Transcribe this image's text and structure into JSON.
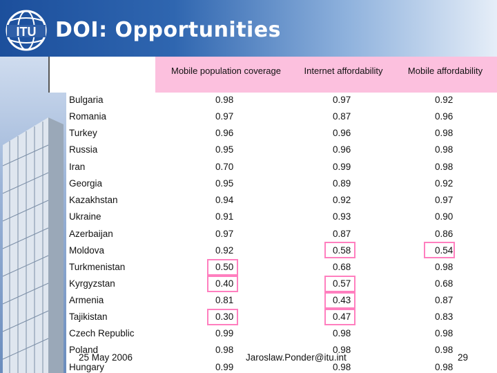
{
  "slide": {
    "logo_text": "ITU",
    "title": "DOI: Opportunities",
    "columns": [
      "Mobile population coverage",
      "Internet affordability",
      "Mobile affordability"
    ],
    "rows": [
      {
        "country": "Bulgaria",
        "mobile_population_coverage": "0.98",
        "internet_affordability": "0.97",
        "mobile_affordability": "0.92"
      },
      {
        "country": "Romania",
        "mobile_population_coverage": "0.97",
        "internet_affordability": "0.87",
        "mobile_affordability": "0.96"
      },
      {
        "country": "Turkey",
        "mobile_population_coverage": "0.96",
        "internet_affordability": "0.96",
        "mobile_affordability": "0.98"
      },
      {
        "country": "Russia",
        "mobile_population_coverage": "0.95",
        "internet_affordability": "0.96",
        "mobile_affordability": "0.98"
      },
      {
        "country": "Iran",
        "mobile_population_coverage": "0.70",
        "internet_affordability": "0.99",
        "mobile_affordability": "0.98"
      },
      {
        "country": "Georgia",
        "mobile_population_coverage": "0.95",
        "internet_affordability": "0.89",
        "mobile_affordability": "0.92"
      },
      {
        "country": "Kazakhstan",
        "mobile_population_coverage": "0.94",
        "internet_affordability": "0.92",
        "mobile_affordability": "0.97"
      },
      {
        "country": "Ukraine",
        "mobile_population_coverage": "0.91",
        "internet_affordability": "0.93",
        "mobile_affordability": "0.90"
      },
      {
        "country": "Azerbaijan",
        "mobile_population_coverage": "0.97",
        "internet_affordability": "0.87",
        "mobile_affordability": "0.86"
      },
      {
        "country": "Moldova",
        "mobile_population_coverage": "0.92",
        "internet_affordability": "0.58",
        "mobile_affordability": "0.54"
      },
      {
        "country": "Turkmenistan",
        "mobile_population_coverage": "0.50",
        "internet_affordability": "0.68",
        "mobile_affordability": "0.98"
      },
      {
        "country": "Kyrgyzstan",
        "mobile_population_coverage": "0.40",
        "internet_affordability": "0.57",
        "mobile_affordability": "0.68"
      },
      {
        "country": "Armenia",
        "mobile_population_coverage": "0.81",
        "internet_affordability": "0.43",
        "mobile_affordability": "0.87"
      },
      {
        "country": "Tajikistan",
        "mobile_population_coverage": "0.30",
        "internet_affordability": "0.47",
        "mobile_affordability": "0.83"
      },
      {
        "country": "Czech Republic",
        "mobile_population_coverage": "0.99",
        "internet_affordability": "0.98",
        "mobile_affordability": "0.98"
      },
      {
        "country": "Poland",
        "mobile_population_coverage": "0.98",
        "internet_affordability": "0.98",
        "mobile_affordability": "0.98"
      },
      {
        "country": "Hungary",
        "mobile_population_coverage": "0.99",
        "internet_affordability": "0.98",
        "mobile_affordability": "0.98"
      }
    ],
    "footer": {
      "date": "25 May 2006",
      "email": "Jaroslaw.Ponder@itu.int",
      "page": "29"
    },
    "colors": {
      "header_fill": "#fcc0de",
      "highlight_border": "#ff7fbf",
      "title_band": "#1c4f9c"
    }
  }
}
